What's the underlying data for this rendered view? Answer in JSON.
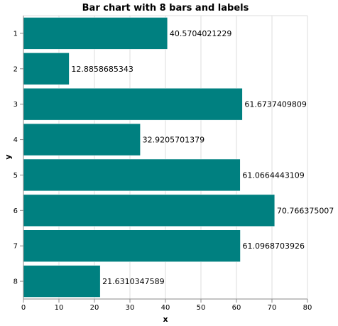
{
  "chart_data": {
    "type": "bar",
    "orientation": "horizontal",
    "title": "Bar chart with 8 bars and labels",
    "xlabel": "x",
    "ylabel": "y",
    "categories": [
      "1",
      "2",
      "3",
      "4",
      "5",
      "6",
      "7",
      "8"
    ],
    "values": [
      40.5704021229,
      12.8858685343,
      61.6737409809,
      32.9205701379,
      61.0664443109,
      70.766375007,
      61.0968703926,
      21.6310347589
    ],
    "value_labels": [
      "40.5704021229",
      "12.8858685343",
      "61.6737409809",
      "32.9205701379",
      "61.0664443109",
      "70.766375007",
      "61.0968703926",
      "21.6310347589"
    ],
    "xlim": [
      0,
      80
    ],
    "xticks": [
      "0",
      "10",
      "20",
      "30",
      "40",
      "50",
      "60",
      "70",
      "80"
    ],
    "grid": true,
    "bar_color": "#008080"
  }
}
